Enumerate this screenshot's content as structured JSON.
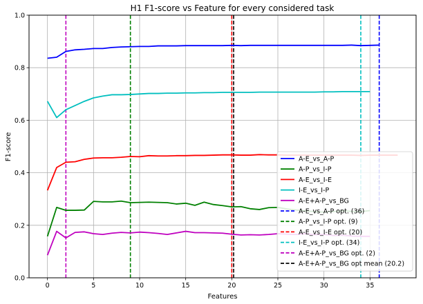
{
  "chart_data": {
    "type": "line",
    "title": "H1 F1-score vs Feature for every considered task",
    "xlabel": "Features",
    "ylabel": "F1-score",
    "xlim": [
      -2,
      40
    ],
    "ylim": [
      0,
      1.0
    ],
    "xticks": [
      0,
      5,
      10,
      15,
      20,
      25,
      30,
      35
    ],
    "yticks": [
      0.0,
      0.2,
      0.4,
      0.6,
      0.8,
      1.0
    ],
    "grid": true,
    "legend_position": "lower-right",
    "series": [
      {
        "name": "A-E_vs_A-P",
        "color": "#0000ff",
        "x": [
          0,
          1,
          2,
          3,
          4,
          5,
          6,
          7,
          8,
          9,
          10,
          11,
          12,
          13,
          14,
          15,
          16,
          17,
          18,
          19,
          20,
          21,
          22,
          23,
          24,
          25,
          26,
          27,
          28,
          29,
          30,
          31,
          32,
          33,
          34,
          35,
          36
        ],
        "values": [
          0.836,
          0.84,
          0.862,
          0.868,
          0.87,
          0.873,
          0.873,
          0.877,
          0.879,
          0.88,
          0.881,
          0.881,
          0.883,
          0.883,
          0.883,
          0.884,
          0.884,
          0.884,
          0.884,
          0.884,
          0.885,
          0.884,
          0.885,
          0.885,
          0.885,
          0.885,
          0.885,
          0.885,
          0.885,
          0.885,
          0.885,
          0.885,
          0.885,
          0.886,
          0.884,
          0.885,
          0.886
        ]
      },
      {
        "name": "A-P_vs_I-P",
        "color": "#008000",
        "x": [
          0,
          1,
          2,
          3,
          4,
          5,
          6,
          7,
          8,
          9,
          10,
          11,
          12,
          13,
          14,
          15,
          16,
          17,
          18,
          19,
          20,
          21,
          22,
          23,
          24,
          25,
          26,
          27,
          28,
          29,
          30,
          31,
          32,
          33,
          34,
          35
        ],
        "values": [
          0.158,
          0.268,
          0.257,
          0.257,
          0.258,
          0.291,
          0.289,
          0.289,
          0.292,
          0.286,
          0.287,
          0.288,
          0.287,
          0.286,
          0.281,
          0.284,
          0.276,
          0.288,
          0.279,
          0.275,
          0.27,
          0.271,
          0.263,
          0.26,
          0.267,
          0.268,
          0.262,
          0.258,
          0.255,
          0.252,
          0.25,
          0.252,
          0.255,
          0.253,
          0.252,
          0.256
        ]
      },
      {
        "name": "A-E_vs_I-E",
        "color": "#ff0000",
        "x": [
          0,
          1,
          2,
          3,
          4,
          5,
          6,
          7,
          8,
          9,
          10,
          11,
          12,
          13,
          14,
          15,
          16,
          17,
          18,
          19,
          20,
          21,
          22,
          23,
          24,
          25,
          26,
          27,
          28,
          29,
          30,
          31,
          32,
          33,
          34,
          35,
          36,
          37,
          38
        ],
        "values": [
          0.333,
          0.42,
          0.44,
          0.442,
          0.451,
          0.456,
          0.457,
          0.457,
          0.459,
          0.462,
          0.461,
          0.465,
          0.464,
          0.464,
          0.465,
          0.465,
          0.466,
          0.466,
          0.467,
          0.468,
          0.468,
          0.467,
          0.467,
          0.469,
          0.468,
          0.468,
          0.467,
          0.467,
          0.467,
          0.467,
          0.467,
          0.467,
          0.467,
          0.467,
          0.466,
          0.467,
          0.467,
          0.467,
          0.467
        ]
      },
      {
        "name": "I-E_vs_I-P",
        "color": "#00bfbf",
        "x": [
          0,
          1,
          2,
          3,
          4,
          5,
          6,
          7,
          8,
          9,
          10,
          11,
          12,
          13,
          14,
          15,
          16,
          17,
          18,
          19,
          20,
          21,
          22,
          23,
          24,
          25,
          26,
          27,
          28,
          29,
          30,
          31,
          32,
          33,
          34,
          35
        ],
        "values": [
          0.672,
          0.61,
          0.64,
          0.656,
          0.672,
          0.685,
          0.692,
          0.697,
          0.697,
          0.698,
          0.7,
          0.702,
          0.702,
          0.703,
          0.703,
          0.704,
          0.704,
          0.705,
          0.705,
          0.706,
          0.706,
          0.706,
          0.706,
          0.707,
          0.707,
          0.707,
          0.707,
          0.707,
          0.707,
          0.707,
          0.708,
          0.708,
          0.709,
          0.709,
          0.709,
          0.709
        ]
      },
      {
        "name": "A-E+A-P_vs_BG",
        "color": "#bf00bf",
        "x": [
          0,
          1,
          2,
          3,
          4,
          5,
          6,
          7,
          8,
          9,
          10,
          11,
          12,
          13,
          14,
          15,
          16,
          17,
          18,
          19,
          20,
          21,
          22,
          23,
          24,
          25,
          26,
          27,
          28,
          29,
          30,
          31,
          32,
          33,
          34,
          35
        ],
        "values": [
          0.086,
          0.177,
          0.152,
          0.173,
          0.175,
          0.168,
          0.165,
          0.17,
          0.173,
          0.171,
          0.174,
          0.172,
          0.169,
          0.165,
          0.171,
          0.177,
          0.172,
          0.172,
          0.171,
          0.17,
          0.166,
          0.163,
          0.164,
          0.163,
          0.165,
          0.168,
          0.166,
          0.165,
          0.168,
          0.164,
          0.165,
          0.161,
          0.162,
          0.159,
          0.158,
          0.158
        ]
      }
    ],
    "vlines": [
      {
        "name": "A-E_vs_A-P opt. (36)",
        "x": 36,
        "color": "#0000ff"
      },
      {
        "name": "A-P_vs_I-P opt. (9)",
        "x": 9,
        "color": "#008000"
      },
      {
        "name": "A-E_vs_I-E opt. (20)",
        "x": 20,
        "color": "#ff0000"
      },
      {
        "name": "I-E_vs_I-P opt. (34)",
        "x": 34,
        "color": "#00bfbf"
      },
      {
        "name": "A-E+A-P_vs_BG opt. (2)",
        "x": 2,
        "color": "#bf00bf"
      },
      {
        "name": "A-E+A-P_vs_BG opt mean (20.2)",
        "x": 20.2,
        "color": "#000000"
      }
    ]
  }
}
